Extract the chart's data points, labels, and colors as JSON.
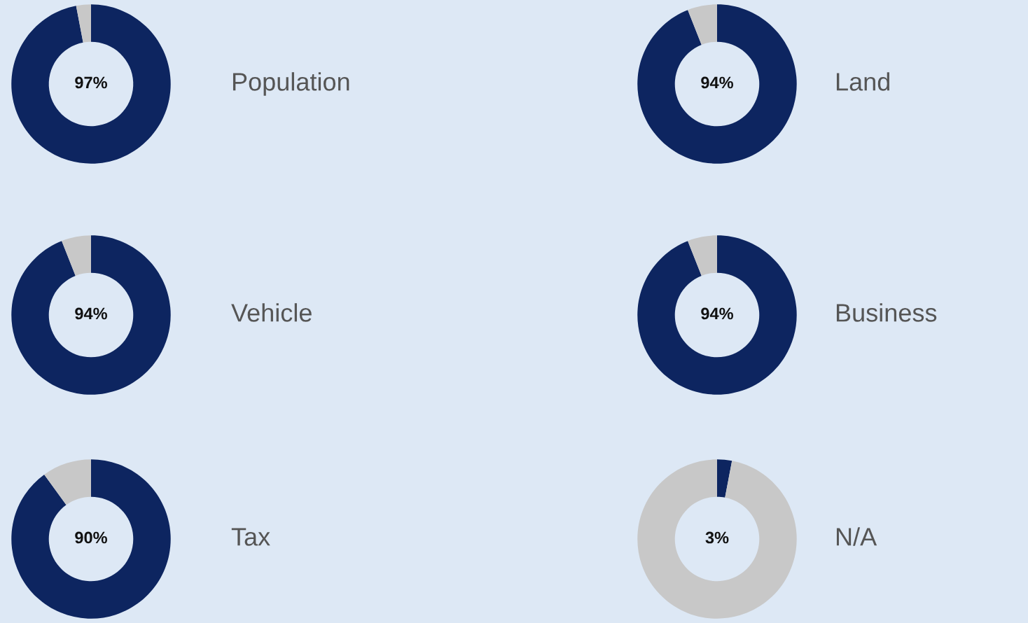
{
  "chart_data": [
    {
      "type": "donut",
      "title": "Population",
      "categories": [
        null,
        null
      ],
      "values": [
        97,
        3
      ],
      "colors": [
        "#0d2560",
        "#c8c8c8"
      ],
      "annotations": [
        "97%"
      ]
    },
    {
      "type": "donut",
      "title": "Land",
      "categories": [
        null,
        null
      ],
      "values": [
        94,
        6
      ],
      "colors": [
        "#0d2560",
        "#c8c8c8"
      ],
      "annotations": [
        "94%"
      ]
    },
    {
      "type": "donut",
      "title": "Vehicle",
      "categories": [
        null,
        null
      ],
      "values": [
        94,
        6
      ],
      "colors": [
        "#0d2560",
        "#c8c8c8"
      ],
      "annotations": [
        "94%"
      ]
    },
    {
      "type": "donut",
      "title": "Business",
      "categories": [
        null,
        null
      ],
      "values": [
        94,
        6
      ],
      "colors": [
        "#0d2560",
        "#c8c8c8"
      ],
      "annotations": [
        "94%"
      ]
    },
    {
      "type": "donut",
      "title": "Tax",
      "categories": [
        null,
        null
      ],
      "values": [
        90,
        10
      ],
      "colors": [
        "#0d2560",
        "#c8c8c8"
      ],
      "annotations": [
        "90%"
      ]
    },
    {
      "type": "donut",
      "title": "N/A",
      "categories": [
        null,
        null
      ],
      "values": [
        3,
        97
      ],
      "colors": [
        "#0d2560",
        "#c8c8c8"
      ],
      "annotations": [
        "3%"
      ]
    }
  ]
}
